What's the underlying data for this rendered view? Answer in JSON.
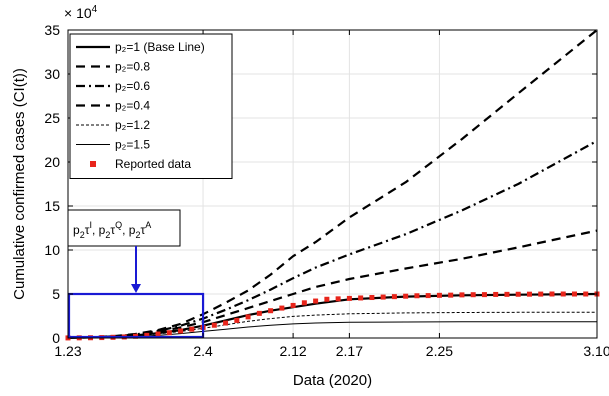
{
  "chart_data": {
    "type": "line",
    "title": "",
    "xlabel": "Data (2020)",
    "ylabel": "Cumulative confirmed cases (CI(t))",
    "y_exponent_label": "× 10",
    "y_exponent_power": "4",
    "xlim": [
      0,
      47
    ],
    "ylim": [
      0,
      35
    ],
    "x_ticks": [
      {
        "label": "1.23",
        "value": 0
      },
      {
        "label": "2.4",
        "value": 12
      },
      {
        "label": "2.12",
        "value": 20
      },
      {
        "label": "2.17",
        "value": 25
      },
      {
        "label": "2.25",
        "value": 33
      },
      {
        "label": "3.10",
        "value": 47
      }
    ],
    "y_ticks": [
      0,
      5,
      10,
      15,
      20,
      25,
      30,
      35
    ],
    "grid": true,
    "legend_position": "top-left",
    "series": [
      {
        "name": "p₂=1 (Base Line)",
        "style": "solid-thick",
        "x": [
          0,
          2,
          4,
          6,
          8,
          10,
          12,
          14,
          16,
          18,
          20,
          22,
          25,
          30,
          35,
          40,
          47
        ],
        "y": [
          0.03,
          0.07,
          0.15,
          0.3,
          0.55,
          0.9,
          1.4,
          2.0,
          2.6,
          3.1,
          3.5,
          3.9,
          4.4,
          4.7,
          4.85,
          4.92,
          5.0
        ]
      },
      {
        "name": "p₂=0.8",
        "style": "dash-thick",
        "x": [
          0,
          2,
          4,
          6,
          8,
          10,
          12,
          14,
          16,
          18,
          20,
          22,
          25,
          30,
          35,
          40,
          47
        ],
        "y": [
          0.03,
          0.07,
          0.2,
          0.45,
          0.9,
          1.6,
          2.7,
          4.0,
          5.4,
          7.2,
          9.3,
          10.9,
          13.7,
          17.7,
          22.6,
          27.8,
          35.0
        ]
      },
      {
        "name": "p₂=0.6",
        "style": "dashdot-thick",
        "x": [
          0,
          2,
          4,
          6,
          8,
          10,
          12,
          14,
          16,
          18,
          20,
          22,
          25,
          30,
          35,
          40,
          47
        ],
        "y": [
          0.03,
          0.07,
          0.18,
          0.4,
          0.8,
          1.4,
          2.2,
          3.2,
          4.3,
          5.5,
          6.8,
          8.0,
          9.5,
          11.8,
          14.5,
          17.5,
          22.4
        ]
      },
      {
        "name": "p₂=0.4",
        "style": "dash-thick",
        "x": [
          0,
          2,
          4,
          6,
          8,
          10,
          12,
          14,
          16,
          18,
          20,
          22,
          25,
          30,
          35,
          40,
          47
        ],
        "y": [
          0.03,
          0.07,
          0.17,
          0.37,
          0.7,
          1.2,
          1.8,
          2.6,
          3.4,
          4.2,
          5.0,
          5.8,
          6.7,
          7.9,
          9.0,
          10.3,
          12.2
        ]
      },
      {
        "name": "p₂=1.2",
        "style": "dotted-thin",
        "x": [
          0,
          2,
          4,
          6,
          8,
          10,
          12,
          14,
          16,
          18,
          20,
          22,
          25,
          30,
          35,
          40,
          47
        ],
        "y": [
          0.03,
          0.06,
          0.13,
          0.26,
          0.45,
          0.75,
          1.1,
          1.5,
          1.9,
          2.2,
          2.45,
          2.6,
          2.75,
          2.85,
          2.9,
          2.92,
          2.93
        ]
      },
      {
        "name": "p₂=1.5",
        "style": "solid-thin",
        "x": [
          0,
          2,
          4,
          6,
          8,
          10,
          12,
          14,
          16,
          18,
          20,
          22,
          25,
          30,
          35,
          40,
          47
        ],
        "y": [
          0.03,
          0.05,
          0.1,
          0.18,
          0.3,
          0.5,
          0.75,
          1.0,
          1.25,
          1.45,
          1.6,
          1.7,
          1.78,
          1.82,
          1.84,
          1.85,
          1.85
        ]
      },
      {
        "name": "Reported data",
        "style": "square-markers",
        "color": "#e8251b",
        "x": [
          0,
          1,
          2,
          3,
          4,
          5,
          6,
          7,
          8,
          9,
          10,
          11,
          12,
          13,
          14,
          15,
          16,
          17,
          18,
          19,
          20,
          21,
          22,
          23,
          24,
          25,
          26,
          27,
          28,
          29,
          30,
          31,
          32,
          33,
          34,
          35,
          36,
          37,
          38,
          39,
          40,
          41,
          42,
          43,
          44,
          45,
          46,
          47
        ],
        "y": [
          0.01,
          0.02,
          0.03,
          0.05,
          0.08,
          0.12,
          0.2,
          0.3,
          0.45,
          0.6,
          0.8,
          1.0,
          1.2,
          1.45,
          1.7,
          2.0,
          2.4,
          2.8,
          3.1,
          3.4,
          3.7,
          4.0,
          4.2,
          4.4,
          4.45,
          4.5,
          4.55,
          4.6,
          4.65,
          4.7,
          4.75,
          4.8,
          4.82,
          4.85,
          4.87,
          4.9,
          4.92,
          4.93,
          4.95,
          4.96,
          4.97,
          4.98,
          4.99,
          5.0,
          5.0,
          5.0,
          5.0,
          5.0
        ]
      }
    ],
    "annotation": {
      "box_color": "#1a1ad4",
      "region_x": [
        0,
        12
      ],
      "region_y": [
        0,
        5
      ],
      "label_parts": [
        {
          "base": "p",
          "sub": "2",
          "mid": "τ",
          "sup": "I",
          "sep": ", "
        },
        {
          "base": "p",
          "sub": "2",
          "mid": "τ",
          "sup": "Q",
          "sep": ", "
        },
        {
          "base": "p",
          "sub": "2",
          "mid": "τ",
          "sup": "A",
          "sep": ""
        }
      ]
    }
  }
}
